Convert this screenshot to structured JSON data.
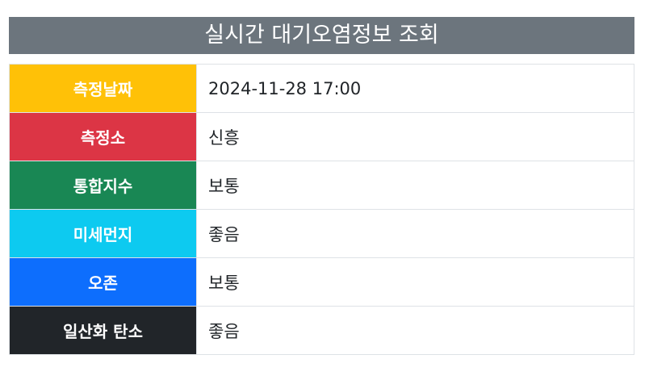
{
  "title": "실시간 대기오염정보 조회",
  "rows": [
    {
      "label": "측정날짜",
      "value": "2024-11-28 17:00",
      "color": "#ffc107"
    },
    {
      "label": "측정소",
      "value": "신흥",
      "color": "#dc3545"
    },
    {
      "label": "통합지수",
      "value": "보통",
      "color": "#198754"
    },
    {
      "label": "미세먼지",
      "value": "좋음",
      "color": "#0dcaf0"
    },
    {
      "label": "오존",
      "value": "보통",
      "color": "#0d6efd"
    },
    {
      "label": "일산화 탄소",
      "value": "좋음",
      "color": "#212529"
    }
  ]
}
